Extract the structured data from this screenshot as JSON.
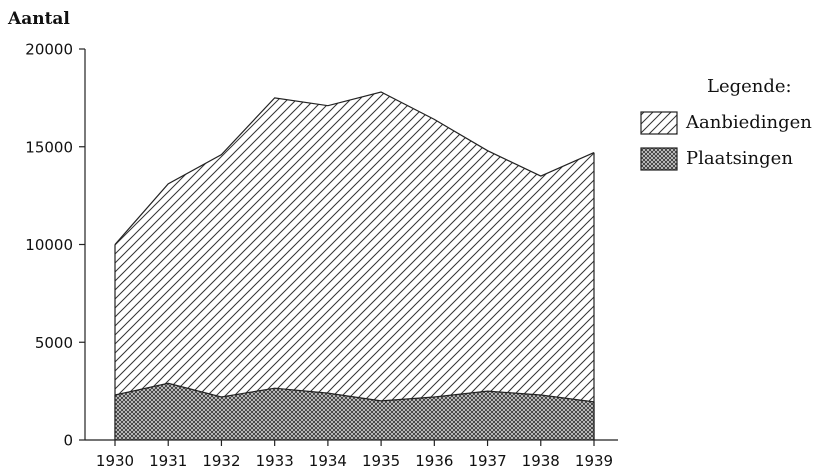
{
  "chart_data": {
    "type": "area",
    "stacked": true,
    "ylabel": "Aantal",
    "xlabel": "",
    "title": "",
    "x": [
      "1930",
      "1931",
      "1932",
      "1933",
      "1934",
      "1935",
      "1936",
      "1937",
      "1938",
      "1939"
    ],
    "series": [
      {
        "name": "Aanbiedingen",
        "values": [
          10000,
          13100,
          14600,
          17500,
          17100,
          17800,
          16400,
          14800,
          13500,
          14700
        ],
        "pattern": "diagonal-hatch"
      },
      {
        "name": "Plaatsingen",
        "values": [
          2300,
          2900,
          2200,
          2650,
          2400,
          2000,
          2200,
          2500,
          2300,
          1950
        ],
        "pattern": "crosshatch"
      }
    ],
    "ylim": [
      0,
      20000
    ],
    "yticks": [
      0,
      5000,
      10000,
      15000,
      20000
    ],
    "ytick_labels": [
      "0",
      "5000",
      "10000",
      "15000",
      "20000"
    ],
    "grid": false,
    "legend": {
      "title": "Legende:",
      "placement": "right",
      "entries": [
        "Aanbiedingen",
        "Plaatsingen"
      ]
    },
    "colors": {
      "ink": "#222222",
      "background": "#ffffff"
    }
  }
}
